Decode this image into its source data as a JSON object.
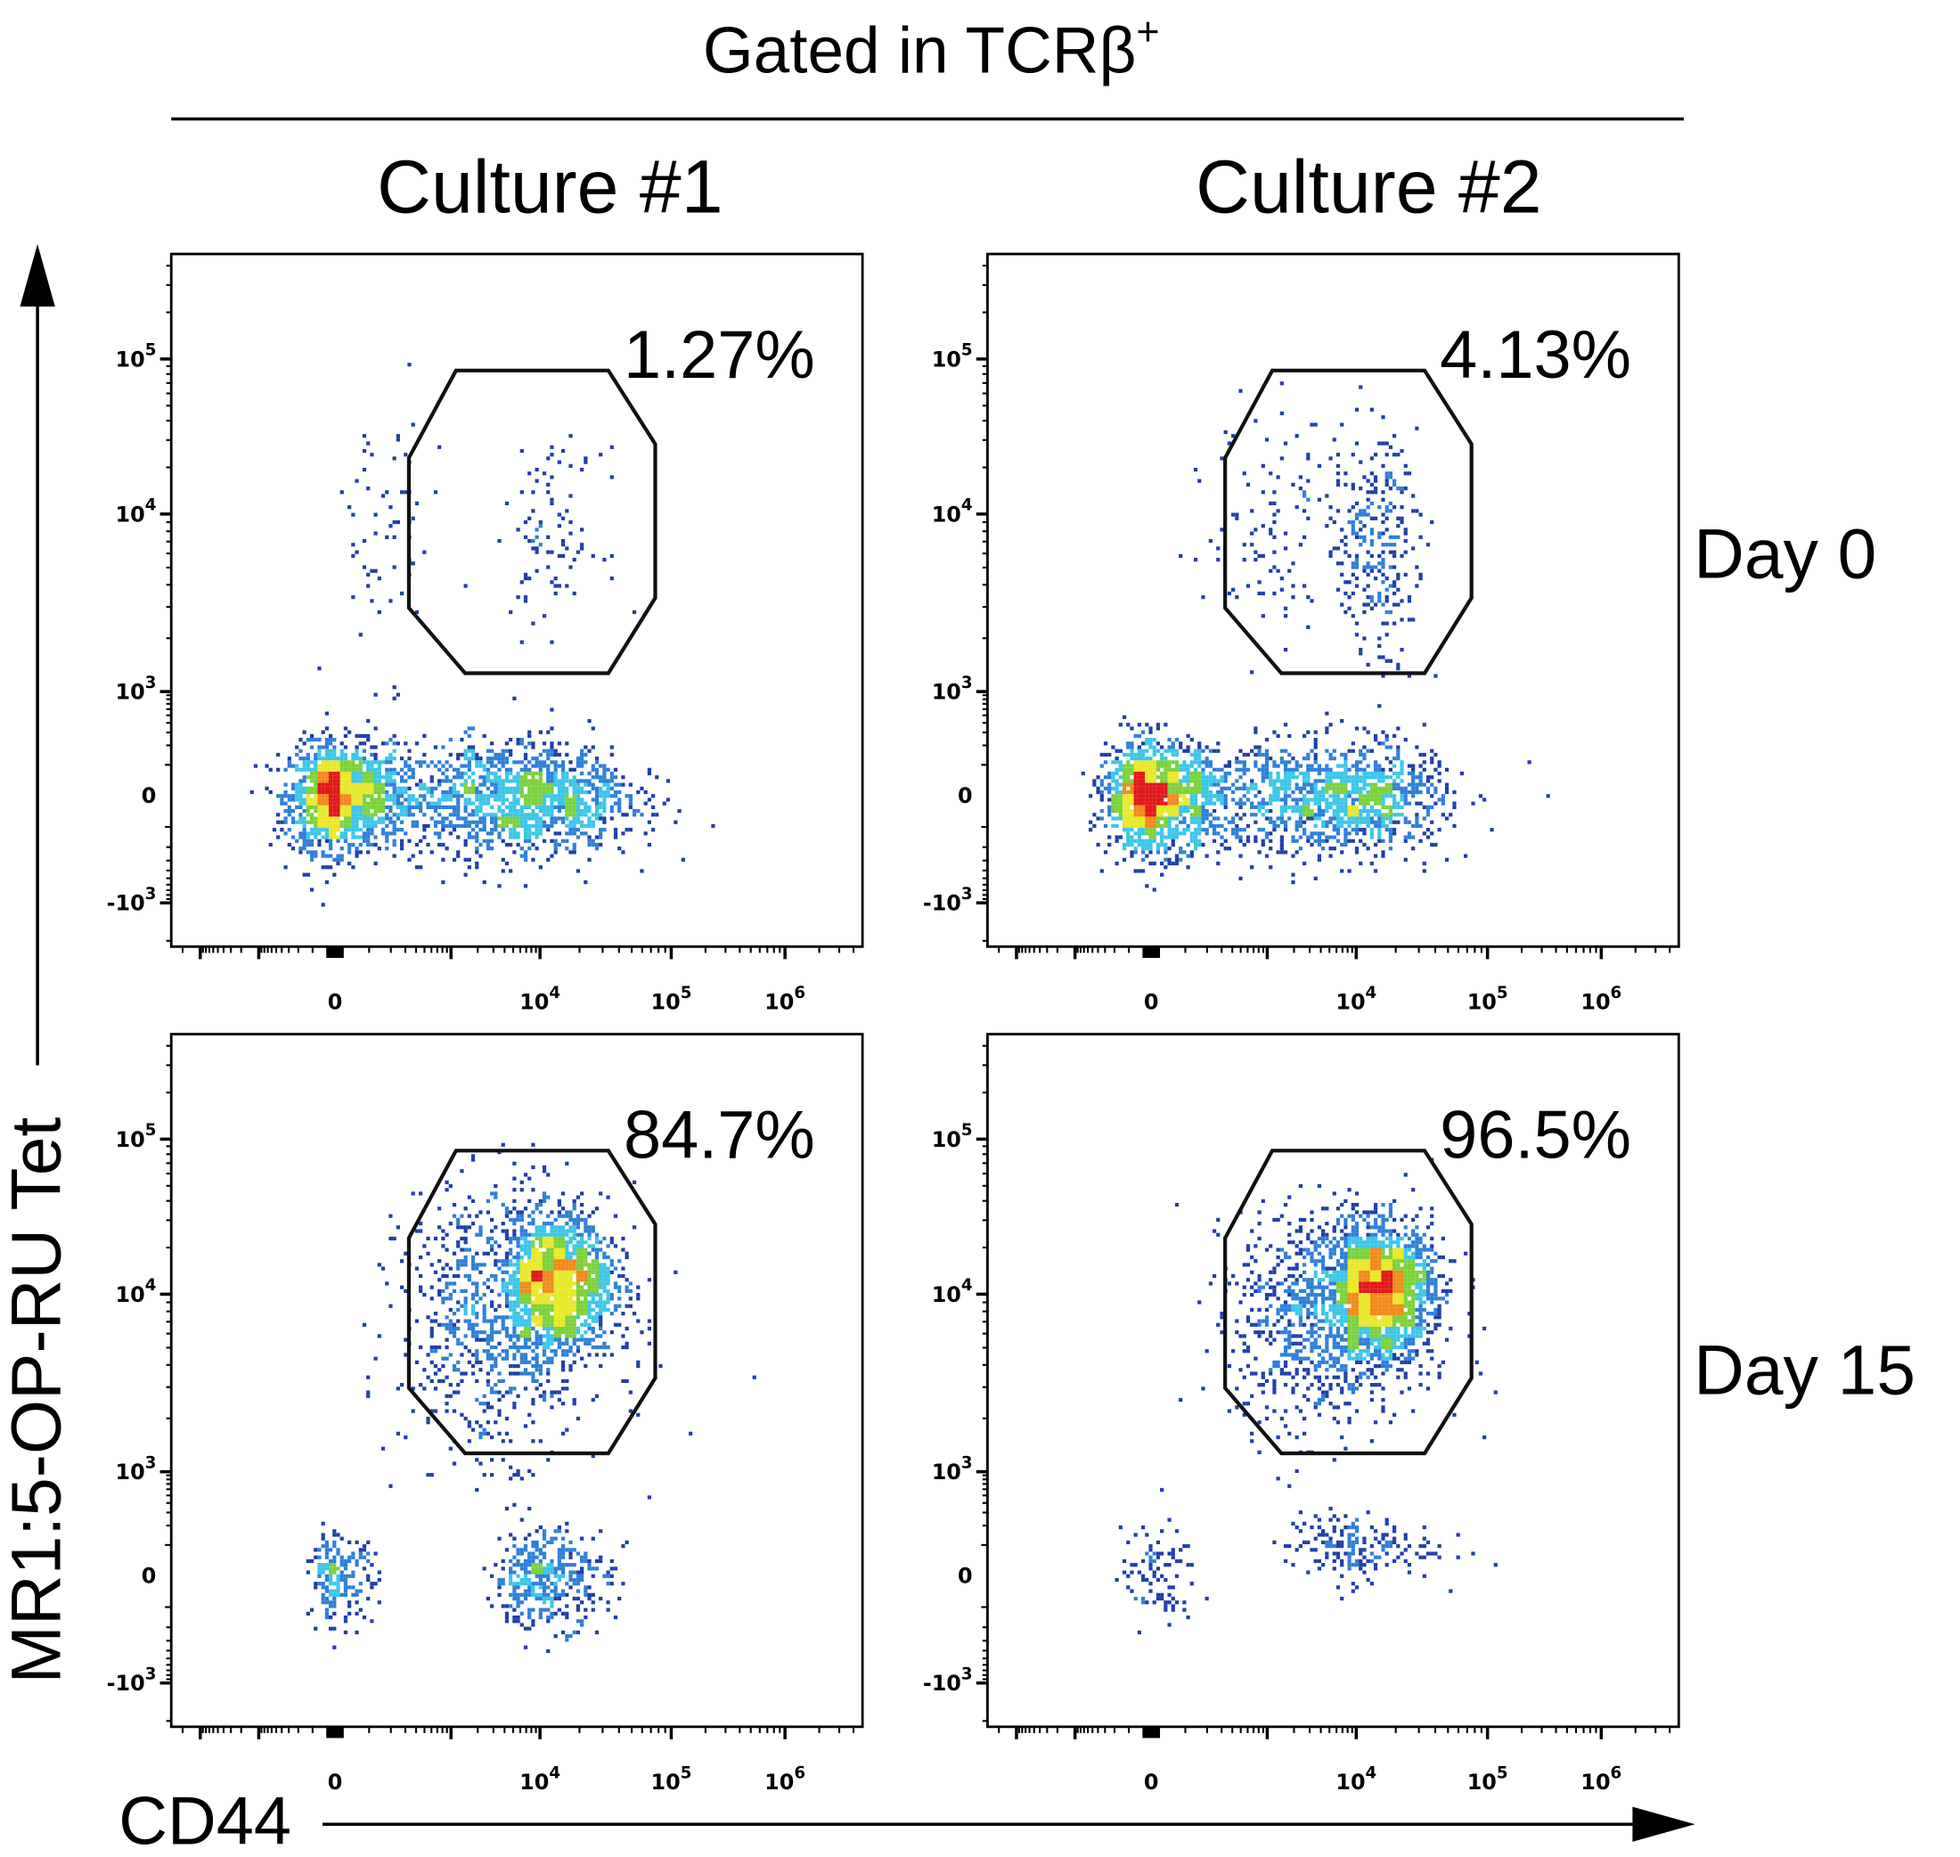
{
  "header": {
    "title": "Gated in TCRβ",
    "title_superscript": "+",
    "columns": [
      "Culture #1",
      "Culture #2"
    ],
    "rows": [
      "Day 0",
      "Day 15"
    ]
  },
  "chart_data": {
    "type": "scatter",
    "subtype": "flow-cytometry density (pseudocolor) plots, 2x2 grid",
    "xlabel": "CD44",
    "ylabel": "MR1:5-OP-RU Tet",
    "x_scale": "biexponential",
    "y_scale": "biexponential",
    "x_ticks": [
      {
        "value": 0,
        "label": "0",
        "sup": ""
      },
      {
        "value": 10000,
        "label": "10",
        "sup": "4"
      },
      {
        "value": 100000,
        "label": "10",
        "sup": "5"
      },
      {
        "value": 1000000,
        "label": "10",
        "sup": "6"
      }
    ],
    "y_ticks": [
      {
        "value": 100000,
        "label": "10",
        "sup": "5"
      },
      {
        "value": 10000,
        "label": "10",
        "sup": "4"
      },
      {
        "value": 1000,
        "label": "10",
        "sup": "3"
      },
      {
        "value": 0,
        "label": "0",
        "sup": ""
      },
      {
        "value": -1000,
        "label": "-10",
        "sup": "3"
      }
    ],
    "colormap": [
      "#1f3fa8",
      "#2f7fd8",
      "#3cc6e8",
      "#7cd23c",
      "#e8e82a",
      "#f08a1c",
      "#e01818"
    ],
    "gate_color": "#111111",
    "gate": [
      [
        1140,
        84300
      ],
      [
        33200,
        84300
      ],
      [
        75500,
        28300
      ],
      [
        75500,
        3370
      ],
      [
        33200,
        1270
      ],
      [
        1440,
        1270
      ],
      [
        330,
        2960
      ],
      [
        330,
        23000
      ]
    ],
    "panels": [
      {
        "culture": "Culture #1",
        "day": "Day 0",
        "gate_percent": "1.27%",
        "populations": [
          {
            "x": 0,
            "y": 0,
            "weight": 0.5
          },
          {
            "x": 3000,
            "y": 0,
            "weight": 0.3
          },
          {
            "x": 15000,
            "y": 0,
            "weight": 0.15
          },
          {
            "x": 12000,
            "y": 8000,
            "weight": 0.03
          },
          {
            "x": 150,
            "y": 8000,
            "weight": 0.02
          }
        ]
      },
      {
        "culture": "Culture #2",
        "day": "Day 0",
        "gate_percent": "4.13%",
        "populations": [
          {
            "x": 0,
            "y": 0,
            "weight": 0.5
          },
          {
            "x": 3000,
            "y": 0,
            "weight": 0.26
          },
          {
            "x": 15000,
            "y": 0,
            "weight": 0.12
          },
          {
            "x": 14000,
            "y": 7000,
            "weight": 0.08
          },
          {
            "x": 1500,
            "y": 10000,
            "weight": 0.04
          }
        ]
      },
      {
        "culture": "Culture #1",
        "day": "Day 15",
        "gate_percent": "84.7%",
        "populations": [
          {
            "x": 13000,
            "y": 12000,
            "weight": 0.55
          },
          {
            "x": 3000,
            "y": 8000,
            "weight": 0.25
          },
          {
            "x": 10000,
            "y": 0,
            "weight": 0.13
          },
          {
            "x": 0,
            "y": 0,
            "weight": 0.07
          }
        ]
      },
      {
        "culture": "Culture #2",
        "day": "Day 15",
        "gate_percent": "96.5%",
        "populations": [
          {
            "x": 15000,
            "y": 11000,
            "weight": 0.62
          },
          {
            "x": 4000,
            "y": 8000,
            "weight": 0.29
          },
          {
            "x": 8000,
            "y": 100,
            "weight": 0.06
          },
          {
            "x": 0,
            "y": 0,
            "weight": 0.03
          }
        ]
      }
    ]
  }
}
